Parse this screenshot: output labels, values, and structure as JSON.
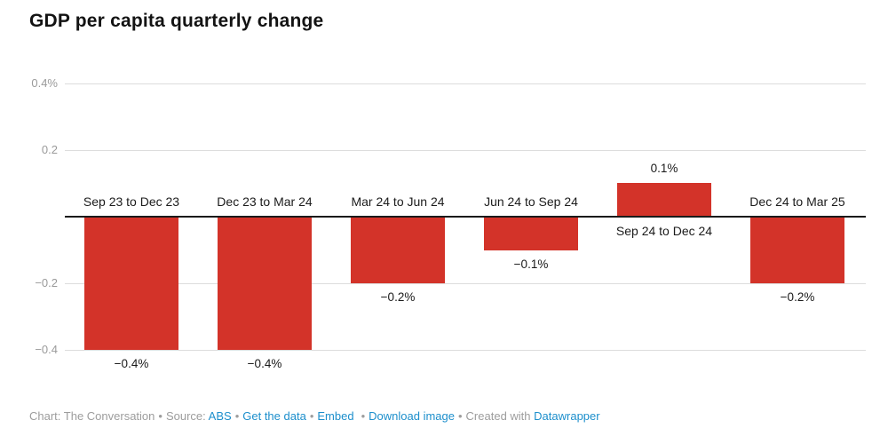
{
  "header": {
    "title": "GDP per capita quarterly change"
  },
  "chart_data": {
    "type": "bar",
    "title": "GDP per capita quarterly change",
    "categories": [
      "Sep 23 to Dec 23",
      "Dec 23 to Mar 24",
      "Mar 24 to Jun 24",
      "Jun 24 to Sep 24",
      "Sep 24 to Dec 24",
      "Dec 24 to Mar 25"
    ],
    "values": [
      -0.4,
      -0.4,
      -0.2,
      -0.1,
      0.1,
      -0.2
    ],
    "value_labels": [
      "−0.4%",
      "−0.4%",
      "−0.2%",
      "−0.1%",
      "0.1%",
      "−0.2%"
    ],
    "xlabel": "",
    "ylabel": "",
    "ylim": [
      -0.45,
      0.45
    ],
    "yticks": [
      {
        "value": 0.4,
        "label": "0.4%"
      },
      {
        "value": 0.2,
        "label": "0.2"
      },
      {
        "value": -0.2,
        "label": "−0.2"
      },
      {
        "value": -0.4,
        "label": "−0.4"
      }
    ],
    "grid": true,
    "legend": "none",
    "bar_color": "#d33329",
    "grid_color": "#dddddd",
    "zero_line_color": "#1a1a1a",
    "tick_label_color": "#9a9a9a"
  },
  "footer": {
    "credit": "Chart: The Conversation",
    "separator": "•",
    "source_label": "Source:",
    "source_link": "ABS",
    "get_data_link": "Get the data",
    "embed_link": "Embed",
    "download_link": "Download image",
    "created_with": "Created with",
    "tool_link": "Datawrapper"
  }
}
